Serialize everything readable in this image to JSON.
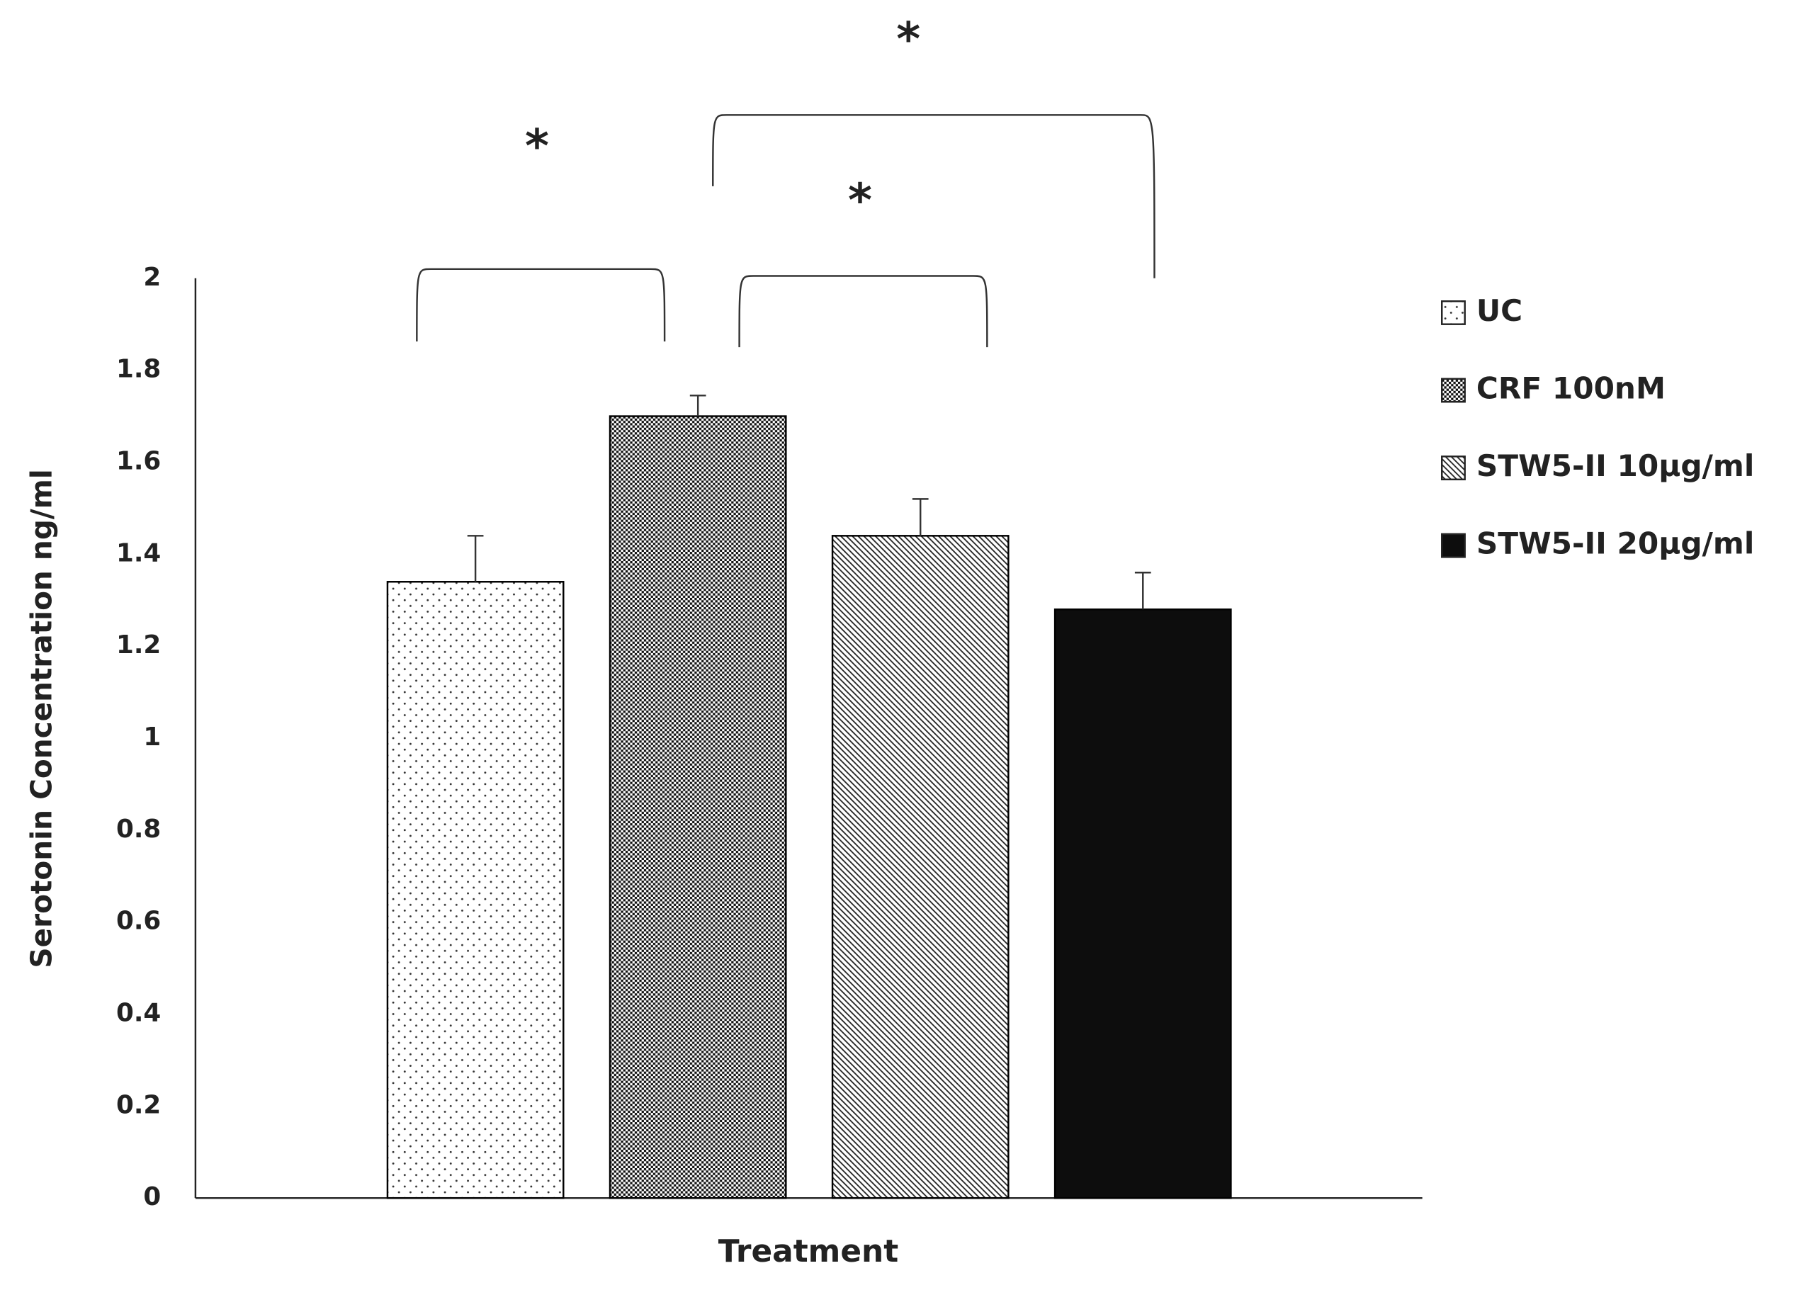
{
  "chart_data": {
    "type": "bar",
    "y_label": "Serotonin Concentration ng/ml",
    "x_label": "Treatment",
    "categories": [
      null
    ],
    "series": [
      {
        "name": "UC",
        "pattern": "dots",
        "color": "#000000",
        "values": [
          1.34
        ],
        "errors": [
          0.1
        ]
      },
      {
        "name": "CRF 100nM",
        "pattern": "checker",
        "color": "#000000",
        "values": [
          1.7
        ],
        "errors": [
          0.045
        ]
      },
      {
        "name": "STW5-II 10µg/ml",
        "pattern": "diagonal",
        "color": "#000000",
        "values": [
          1.44
        ],
        "errors": [
          0.08
        ]
      },
      {
        "name": "STW5-II 20µg/ml",
        "pattern": "solid",
        "color": "#000000",
        "values": [
          1.28
        ],
        "errors": [
          0.08
        ]
      }
    ],
    "annotations": [
      "*",
      "*",
      "*"
    ],
    "ylim": [
      0,
      2
    ],
    "yticks": [
      0,
      0.2,
      0.4,
      0.6,
      0.8,
      1,
      1.2,
      1.4,
      1.6,
      1.8,
      2
    ],
    "grid": false,
    "legend": "right"
  }
}
